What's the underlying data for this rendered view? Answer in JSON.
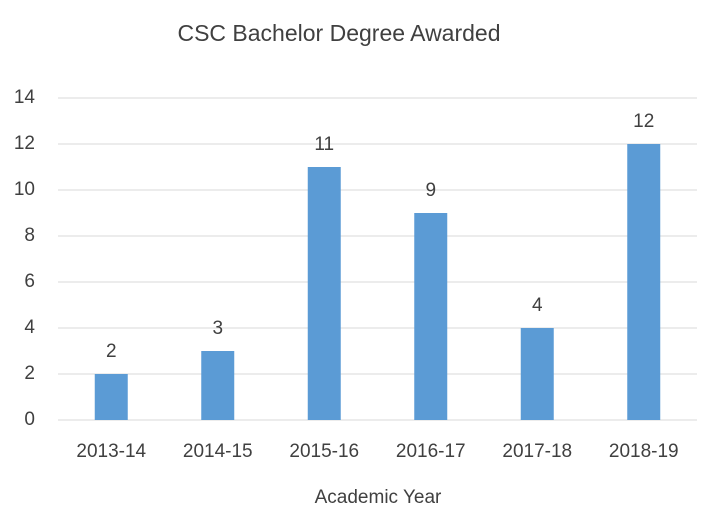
{
  "chart_data": {
    "type": "bar",
    "title": "CSC Bachelor Degree Awarded",
    "x_label": "Academic Year",
    "categories": [
      "2013-14",
      "2014-15",
      "2015-16",
      "2016-17",
      "2017-18",
      "2018-19"
    ],
    "values": [
      2,
      3,
      11,
      9,
      4,
      12
    ],
    "color": "#5b9bd5",
    "ylim": [
      0,
      14
    ],
    "yticks": [
      0,
      2,
      4,
      6,
      8,
      10,
      12,
      14
    ],
    "grid": true,
    "data_labels": true
  }
}
